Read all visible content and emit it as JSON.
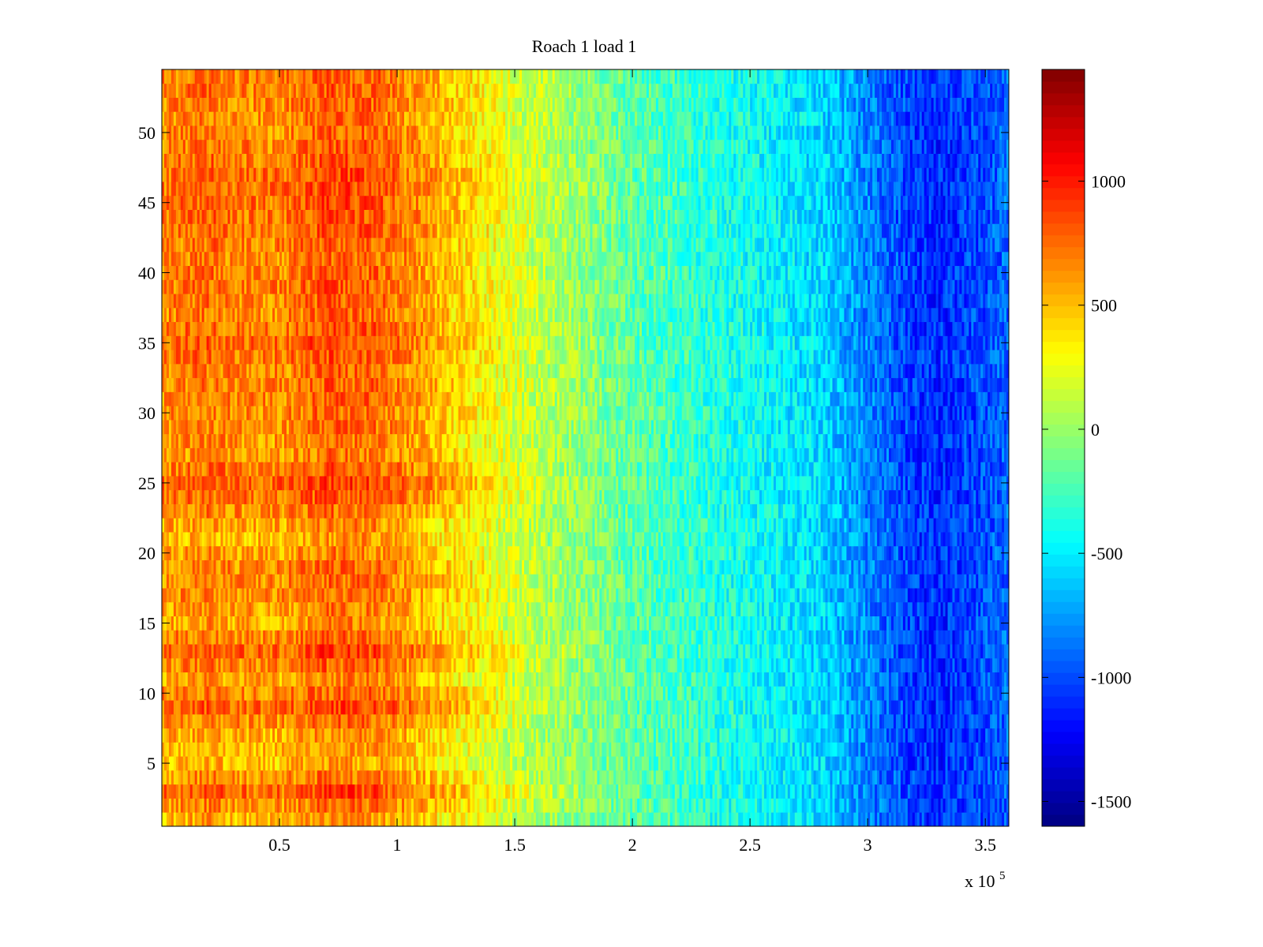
{
  "chart_data": {
    "type": "heatmap",
    "title": "Roach 1 load 1",
    "xlabel": "",
    "ylabel": "",
    "x_exponent_label": "x 10",
    "x_exponent_power": "5",
    "xlim": [
      0,
      3.6
    ],
    "ylim": [
      0.5,
      54.5
    ],
    "x_ticks": [
      0.5,
      1,
      1.5,
      2,
      2.5,
      3,
      3.5
    ],
    "x_tick_labels": [
      "0.5",
      "1",
      "1.5",
      "2",
      "2.5",
      "3",
      "3.5"
    ],
    "y_ticks": [
      5,
      10,
      15,
      20,
      25,
      30,
      35,
      40,
      45,
      50
    ],
    "y_tick_labels": [
      "5",
      "10",
      "15",
      "20",
      "25",
      "30",
      "35",
      "40",
      "45",
      "50"
    ],
    "rows": 54,
    "colormap": "jet",
    "clim": [
      -1600,
      1450
    ],
    "colorbar_ticks": [
      1000,
      500,
      0,
      -500,
      -1000,
      -1500
    ],
    "colorbar_tick_labels": [
      "1000",
      "500",
      "0",
      "-500",
      "-1000",
      "-1500"
    ],
    "grid": false,
    "column_profile": {
      "x": [
        0,
        0.1,
        0.2,
        0.3,
        0.5,
        0.7,
        0.9,
        1.1,
        1.5,
        2.0,
        2.5,
        2.8,
        3.0,
        3.2,
        3.3,
        3.5,
        3.6
      ],
      "value": [
        580,
        620,
        660,
        600,
        580,
        720,
        690,
        520,
        150,
        -180,
        -420,
        -560,
        -820,
        -1050,
        -1100,
        -980,
        -900
      ]
    },
    "row_profile": {
      "y": [
        1,
        3,
        5,
        7,
        9,
        11,
        13,
        15,
        17,
        19,
        21,
        23,
        25,
        27,
        29,
        31,
        33,
        35,
        37,
        39,
        41,
        43,
        45,
        47,
        49,
        51,
        53
      ],
      "offset": [
        -80,
        160,
        -120,
        -60,
        170,
        -30,
        170,
        -40,
        40,
        60,
        -90,
        40,
        190,
        10,
        40,
        70,
        70,
        160,
        60,
        100,
        60,
        110,
        140,
        150,
        90,
        50,
        90
      ]
    },
    "noise_amplitude": 220
  }
}
